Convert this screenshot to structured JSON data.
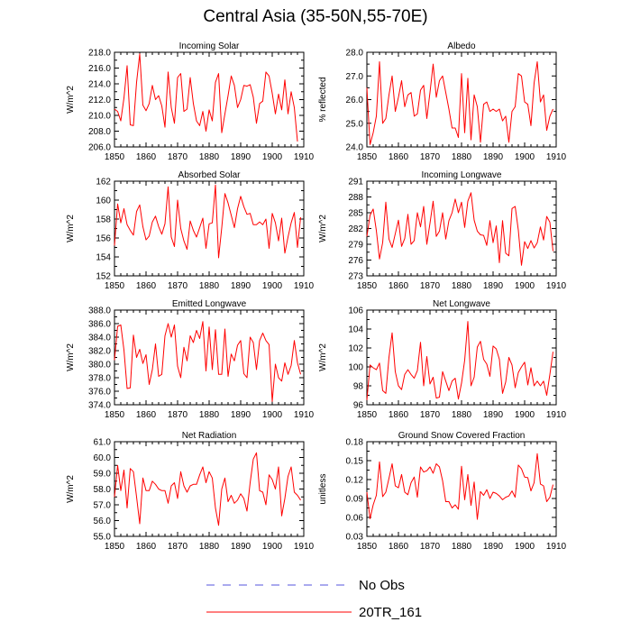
{
  "title": "Central Asia (35-50N,55-70E)",
  "colors": {
    "model": "#ff0000",
    "obs": "#5555dd",
    "axis": "#000000"
  },
  "legend": {
    "items": [
      {
        "label": "No Obs",
        "style": "dashed",
        "color": "#5555dd"
      },
      {
        "label": "20TR_161",
        "style": "solid",
        "color": "#ff0000"
      }
    ],
    "position": "bottom-center"
  },
  "chart_data": [
    {
      "type": "line",
      "title": "Incoming Solar",
      "xlabel": "",
      "ylabel": "W/m^2",
      "xlim": [
        1850,
        1910
      ],
      "ylim": [
        206,
        218
      ],
      "xticks": [
        1850,
        1860,
        1870,
        1880,
        1890,
        1900,
        1910
      ],
      "yticks": [
        206,
        208,
        210,
        212,
        214,
        216,
        218
      ],
      "ytick_labels": [
        "206.0",
        "208.0",
        "210.0",
        "212.0",
        "214.0",
        "216.0",
        "218.0"
      ],
      "series": [
        {
          "name": "20TR_161",
          "x_start": 1850,
          "values": [
            210.8,
            210.5,
            209.3,
            212.2,
            216.3,
            208.8,
            208.7,
            214.2,
            217.8,
            211.3,
            210.6,
            211.5,
            213.8,
            212.0,
            212.5,
            211.2,
            208.5,
            215.5,
            211.0,
            209.0,
            214.8,
            215.3,
            210.5,
            210.8,
            214.8,
            211.5,
            209.3,
            208.7,
            210.5,
            208.0,
            210.7,
            209.3,
            214.2,
            215.3,
            207.8,
            210.2,
            212.5,
            215.0,
            213.8,
            211.0,
            212.0,
            213.8,
            213.7,
            213.9,
            212.3,
            209.0,
            211.5,
            211.8,
            215.5,
            215.0,
            212.8,
            210.2,
            212.7,
            210.7,
            214.5,
            210.2,
            213.0,
            211.0,
            206.7
          ]
        }
      ]
    },
    {
      "type": "line",
      "title": "Albedo",
      "xlabel": "",
      "ylabel": "% reflected",
      "xlim": [
        1850,
        1910
      ],
      "ylim": [
        24,
        28
      ],
      "xticks": [
        1850,
        1860,
        1870,
        1880,
        1890,
        1900,
        1910
      ],
      "yticks": [
        24,
        25,
        26,
        27,
        28
      ],
      "ytick_labels": [
        "24.0",
        "25.0",
        "26.0",
        "27.0",
        "28.0"
      ],
      "series": [
        {
          "name": "20TR_161",
          "x_start": 1850,
          "values": [
            26.5,
            24.1,
            24.6,
            25.3,
            27.6,
            25.0,
            25.2,
            26.2,
            27.0,
            25.5,
            26.1,
            26.8,
            25.7,
            26.2,
            26.3,
            25.3,
            25.4,
            26.4,
            26.6,
            25.2,
            26.3,
            27.5,
            26.1,
            26.8,
            27.0,
            26.3,
            25.6,
            24.8,
            24.8,
            24.4,
            27.1,
            24.6,
            26.9,
            24.3,
            26.2,
            25.7,
            24.2,
            25.8,
            25.9,
            25.5,
            25.6,
            25.5,
            25.6,
            25.1,
            25.3,
            24.2,
            25.5,
            25.7,
            27.1,
            27.0,
            25.9,
            25.8,
            24.9,
            26.7,
            27.6,
            25.9,
            26.2,
            24.7,
            25.3,
            25.6
          ]
        }
      ]
    },
    {
      "type": "line",
      "title": "Absorbed Solar",
      "xlabel": "",
      "ylabel": "W/m^2",
      "xlim": [
        1850,
        1910
      ],
      "ylim": [
        152,
        162
      ],
      "xticks": [
        1850,
        1860,
        1870,
        1880,
        1890,
        1900,
        1910
      ],
      "yticks": [
        152,
        154,
        156,
        158,
        160,
        162
      ],
      "ytick_labels": [
        "152",
        "154",
        "156",
        "158",
        "160",
        "162"
      ],
      "series": [
        {
          "name": "20TR_161",
          "x_start": 1850,
          "values": [
            155.2,
            159.6,
            157.6,
            159.1,
            157.4,
            156.8,
            156.3,
            158.8,
            159.5,
            157.2,
            155.8,
            156.2,
            157.7,
            158.3,
            157.2,
            156.4,
            157.5,
            161.4,
            156.1,
            155.1,
            160.0,
            157.0,
            155.7,
            154.8,
            157.8,
            156.8,
            156.1,
            157.1,
            158.1,
            154.9,
            157.5,
            157.6,
            161.6,
            153.9,
            157.1,
            160.7,
            159.7,
            158.4,
            157.1,
            159.1,
            160.4,
            159.3,
            158.5,
            158.6,
            157.4,
            157.4,
            157.7,
            157.4,
            158.0,
            154.9,
            158.6,
            157.6,
            155.7,
            158.1,
            154.4,
            156.1,
            157.6,
            158.7,
            155.0,
            158.2
          ]
        }
      ]
    },
    {
      "type": "line",
      "title": "Incoming Longwave",
      "xlabel": "",
      "ylabel": "W/m^2",
      "xlim": [
        1850,
        1910
      ],
      "ylim": [
        273,
        291
      ],
      "xticks": [
        1850,
        1860,
        1870,
        1880,
        1890,
        1900,
        1910
      ],
      "yticks": [
        273,
        276,
        279,
        282,
        285,
        288,
        291
      ],
      "ytick_labels": [
        "273",
        "276",
        "279",
        "282",
        "285",
        "288",
        "291"
      ],
      "series": [
        {
          "name": "20TR_161",
          "x_start": 1850,
          "values": [
            280.5,
            284.5,
            285.7,
            281.6,
            276.2,
            279.3,
            287.0,
            280.0,
            278.4,
            281.0,
            283.6,
            278.6,
            280.1,
            284.7,
            279.0,
            279.7,
            285.0,
            282.3,
            286.2,
            279.0,
            283.0,
            287.2,
            280.5,
            281.5,
            285.0,
            280.0,
            283.5,
            285.0,
            287.6,
            285.0,
            287.0,
            282.2,
            287.2,
            288.8,
            283.6,
            281.5,
            280.8,
            280.7,
            278.8,
            283.5,
            279.3,
            282.5,
            275.5,
            283.5,
            277.3,
            276.8,
            285.8,
            286.2,
            281.7,
            275.0,
            279.5,
            278.2,
            279.7,
            278.3,
            279.3,
            282.3,
            279.8,
            284.3,
            283.2,
            277.7
          ]
        }
      ]
    },
    {
      "type": "line",
      "title": "Emitted Longwave",
      "xlabel": "",
      "ylabel": "W/m^2",
      "xlim": [
        1850,
        1910
      ],
      "ylim": [
        374,
        388
      ],
      "xticks": [
        1850,
        1860,
        1870,
        1880,
        1890,
        1900,
        1910
      ],
      "yticks": [
        374,
        376,
        378,
        380,
        382,
        384,
        386,
        388
      ],
      "ytick_labels": [
        "374.0",
        "376.0",
        "378.0",
        "380.0",
        "382.0",
        "384.0",
        "386.0",
        "388.0"
      ],
      "series": [
        {
          "name": "20TR_161",
          "x_start": 1850,
          "values": [
            380.6,
            385.6,
            385.8,
            382.1,
            376.4,
            376.5,
            384.3,
            381.0,
            382.2,
            380.1,
            381.4,
            377.0,
            379.2,
            383.0,
            378.2,
            378.5,
            384.2,
            386.0,
            384.0,
            385.8,
            379.7,
            378.0,
            382.5,
            380.5,
            384.2,
            383.2,
            385.0,
            383.8,
            386.3,
            379.0,
            385.5,
            379.2,
            385.1,
            378.5,
            378.5,
            385.2,
            378.2,
            381.5,
            380.5,
            382.8,
            383.5,
            378.6,
            378.0,
            384.0,
            383.2,
            379.2,
            383.5,
            384.6,
            383.5,
            382.9,
            374.5,
            380.0,
            378.0,
            377.5,
            380.2,
            378.5,
            379.8,
            383.5,
            380.2,
            378.5
          ]
        }
      ]
    },
    {
      "type": "line",
      "title": "Net Longwave",
      "xlabel": "",
      "ylabel": "W/m^2",
      "xlim": [
        1850,
        1910
      ],
      "ylim": [
        96,
        106
      ],
      "xticks": [
        1850,
        1860,
        1870,
        1880,
        1890,
        1900,
        1910
      ],
      "yticks": [
        96,
        98,
        100,
        102,
        104,
        106
      ],
      "ytick_labels": [
        "96",
        "98",
        "100",
        "102",
        "104",
        "106"
      ],
      "series": [
        {
          "name": "20TR_161",
          "x_start": 1850,
          "values": [
            96.5,
            100.2,
            99.9,
            99.7,
            100.4,
            97.5,
            97.2,
            101.0,
            103.6,
            99.5,
            98.0,
            97.6,
            99.2,
            99.7,
            99.2,
            98.8,
            99.6,
            102.6,
            98.0,
            101.1,
            98.2,
            98.9,
            96.7,
            96.8,
            99.5,
            98.5,
            97.5,
            98.5,
            98.8,
            96.6,
            98.3,
            100.7,
            104.8,
            98.0,
            98.9,
            102.1,
            102.7,
            100.8,
            100.3,
            99.0,
            102.2,
            101.9,
            100.8,
            97.2,
            98.4,
            101.0,
            100.2,
            97.8,
            99.4,
            100.0,
            100.5,
            98.1,
            99.9,
            98.0,
            98.5,
            98.0,
            98.5,
            97.0,
            99.2,
            101.6
          ]
        }
      ]
    },
    {
      "type": "line",
      "title": "Net Radiation",
      "xlabel": "",
      "ylabel": "W/m^2",
      "xlim": [
        1850,
        1910
      ],
      "ylim": [
        55,
        61
      ],
      "xticks": [
        1850,
        1860,
        1870,
        1880,
        1890,
        1900,
        1910
      ],
      "yticks": [
        55,
        56,
        57,
        58,
        59,
        60,
        61
      ],
      "ytick_labels": [
        "55.0",
        "56.0",
        "57.0",
        "58.0",
        "59.0",
        "60.0",
        "61.0"
      ],
      "series": [
        {
          "name": "20TR_161",
          "x_start": 1850,
          "values": [
            57.5,
            59.5,
            57.9,
            59.2,
            56.8,
            59.3,
            59.1,
            57.5,
            55.8,
            58.7,
            57.9,
            57.9,
            58.5,
            58.3,
            58.0,
            57.9,
            57.9,
            57.1,
            58.2,
            58.4,
            57.4,
            59.1,
            58.2,
            57.8,
            58.2,
            58.3,
            58.3,
            58.9,
            59.4,
            58.4,
            59.1,
            58.7,
            56.8,
            55.7,
            58.0,
            58.7,
            57.2,
            57.6,
            57.1,
            57.3,
            57.7,
            57.4,
            56.6,
            58.4,
            59.9,
            60.3,
            57.9,
            57.8,
            57.0,
            58.9,
            58.6,
            58.0,
            59.4,
            56.3,
            57.4,
            58.8,
            59.4,
            57.8,
            57.6,
            57.3
          ]
        }
      ]
    },
    {
      "type": "line",
      "title": "Ground Snow Covered Fraction",
      "xlabel": "",
      "ylabel": "unitless",
      "xlim": [
        1850,
        1910
      ],
      "ylim": [
        0.03,
        0.18
      ],
      "xticks": [
        1850,
        1860,
        1870,
        1880,
        1890,
        1900,
        1910
      ],
      "yticks": [
        0.03,
        0.06,
        0.09,
        0.12,
        0.15,
        0.18
      ],
      "ytick_labels": [
        "0.03",
        "0.06",
        "0.09",
        "0.12",
        "0.15",
        "0.18"
      ],
      "series": [
        {
          "name": "20TR_161",
          "x_start": 1850,
          "values": [
            0.1,
            0.058,
            0.08,
            0.095,
            0.148,
            0.093,
            0.1,
            0.122,
            0.145,
            0.11,
            0.107,
            0.128,
            0.1,
            0.096,
            0.115,
            0.124,
            0.092,
            0.14,
            0.132,
            0.134,
            0.14,
            0.13,
            0.145,
            0.14,
            0.118,
            0.085,
            0.085,
            0.075,
            0.08,
            0.073,
            0.141,
            0.088,
            0.128,
            0.079,
            0.116,
            0.057,
            0.101,
            0.095,
            0.104,
            0.09,
            0.1,
            0.098,
            0.094,
            0.088,
            0.092,
            0.094,
            0.102,
            0.092,
            0.143,
            0.137,
            0.124,
            0.123,
            0.102,
            0.115,
            0.161,
            0.113,
            0.11,
            0.085,
            0.092,
            0.112
          ]
        }
      ]
    }
  ]
}
